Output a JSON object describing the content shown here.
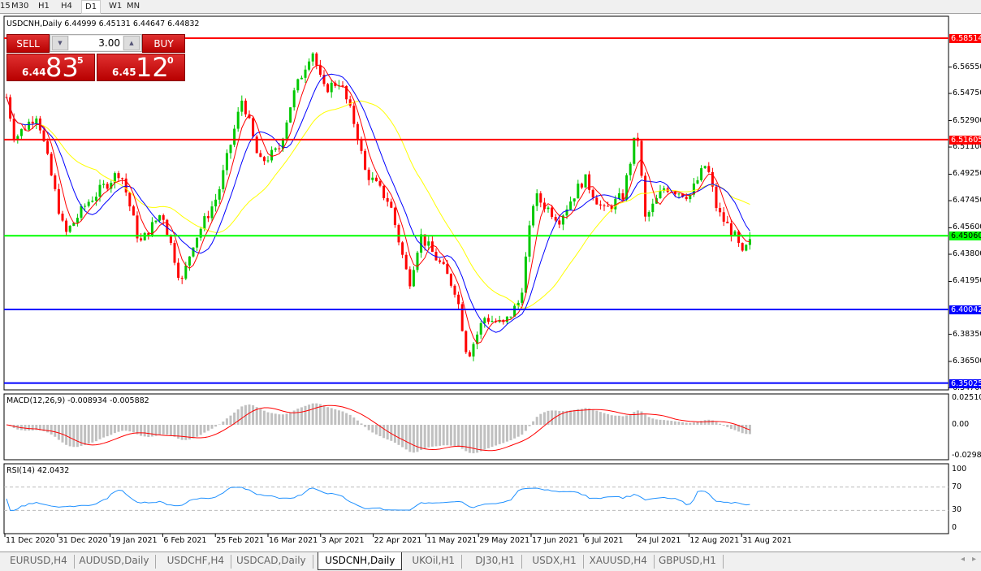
{
  "timeframes": [
    "15",
    "M30",
    "H1",
    "H4",
    "D1",
    "W1",
    "MN"
  ],
  "active_timeframe": "D1",
  "chart_title": "USDCNH,Daily  6.44999 6.45131 6.44647 6.44832",
  "trade_panel": {
    "sell_label": "SELL",
    "buy_label": "BUY",
    "lot": "3.00",
    "sell_small": "6.44",
    "sell_big": "83",
    "sell_pip": "5",
    "buy_small": "6.45",
    "buy_big": "12",
    "buy_pip": "0"
  },
  "price_axis": [
    "6.56550",
    "6.54750",
    "6.52900",
    "6.51100",
    "6.49250",
    "6.47450",
    "6.45600",
    "6.43800",
    "6.41950",
    "6.38350",
    "6.36500",
    "6.34700"
  ],
  "hlines": [
    {
      "value": "6.58514",
      "color": "#ff0000"
    },
    {
      "value": "6.51605",
      "color": "#ff0000"
    },
    {
      "value": "6.45060",
      "color": "#00ff00"
    },
    {
      "value": "6.40042",
      "color": "#0000ff"
    },
    {
      "value": "6.35025",
      "color": "#0000ff"
    }
  ],
  "current_price": "6.44832",
  "macd": {
    "label": "MACD(12,26,9) -0.008934 -0.005882",
    "axis": [
      "0.025108",
      "0.00",
      "-0.02988"
    ]
  },
  "rsi": {
    "label": "RSI(14) 42.0432",
    "axis": [
      "100",
      "70",
      "30",
      "0"
    ],
    "levels": [
      70,
      30
    ]
  },
  "date_axis": [
    "11 Dec 2020",
    "31 Dec 2020",
    "19 Jan 2021",
    "6 Feb 2021",
    "25 Feb 2021",
    "16 Mar 2021",
    "3 Apr 2021",
    "22 Apr 2021",
    "11 May 2021",
    "29 May 2021",
    "17 Jun 2021",
    "6 Jul 2021",
    "24 Jul 2021",
    "12 Aug 2021",
    "31 Aug 2021"
  ],
  "tabs": [
    "EURUSD,H4",
    "AUDUSD,Daily",
    "USDCHF,H4",
    "USDCAD,Daily",
    "USDCNH,Daily",
    "UKOil,H1",
    "DJ30,H1",
    "USDX,H1",
    "XAUUSD,H4",
    "GBPUSD,H1"
  ],
  "active_tab": "USDCNH,Daily",
  "colors": {
    "bull": "#00c800",
    "bear": "#ff0000",
    "ma_fast": "#ff0000",
    "ma_mid": "#0000ff",
    "ma_slow": "#ffff00",
    "macd_hist": "#c0c0c0",
    "macd_signal": "#ff0000",
    "rsi": "#1e90ff"
  },
  "chart_data": {
    "type": "candlestick",
    "symbol": "USDCNH",
    "timeframe": "Daily",
    "ylim": [
      6.347,
      6.5851
    ],
    "close_approx": [
      [
        "2020-12-11",
        6.545
      ],
      [
        "2020-12-14",
        6.517
      ],
      [
        "2020-12-22",
        6.534
      ],
      [
        "2021-01-01",
        6.451
      ],
      [
        "2021-01-09",
        6.473
      ],
      [
        "2021-01-21",
        6.495
      ],
      [
        "2021-01-28",
        6.445
      ],
      [
        "2021-02-05",
        6.467
      ],
      [
        "2021-02-12",
        6.418
      ],
      [
        "2021-02-16",
        6.445
      ],
      [
        "2021-02-25",
        6.478
      ],
      [
        "2021-03-06",
        6.545
      ],
      [
        "2021-03-12",
        6.5
      ],
      [
        "2021-03-19",
        6.509
      ],
      [
        "2021-03-24",
        6.545
      ],
      [
        "2021-03-31",
        6.578
      ],
      [
        "2021-04-04",
        6.55
      ],
      [
        "2021-04-10",
        6.556
      ],
      [
        "2021-04-16",
        6.523
      ],
      [
        "2021-04-19",
        6.495
      ],
      [
        "2021-04-28",
        6.473
      ],
      [
        "2021-05-05",
        6.418
      ],
      [
        "2021-05-09",
        6.451
      ],
      [
        "2021-05-17",
        6.429
      ],
      [
        "2021-05-22",
        6.412
      ],
      [
        "2021-05-26",
        6.368
      ],
      [
        "2021-06-01",
        6.395
      ],
      [
        "2021-06-08",
        6.39
      ],
      [
        "2021-06-14",
        6.407
      ],
      [
        "2021-06-19",
        6.478
      ],
      [
        "2021-06-28",
        6.462
      ],
      [
        "2021-07-07",
        6.49
      ],
      [
        "2021-07-14",
        6.467
      ],
      [
        "2021-07-21",
        6.478
      ],
      [
        "2021-07-26",
        6.523
      ],
      [
        "2021-07-29",
        6.462
      ],
      [
        "2021-08-05",
        6.484
      ],
      [
        "2021-08-14",
        6.478
      ],
      [
        "2021-08-20",
        6.5
      ],
      [
        "2021-08-24",
        6.467
      ],
      [
        "2021-08-30",
        6.451
      ],
      [
        "2021-09-02",
        6.437
      ],
      [
        "2021-09-05",
        6.44832
      ]
    ]
  }
}
